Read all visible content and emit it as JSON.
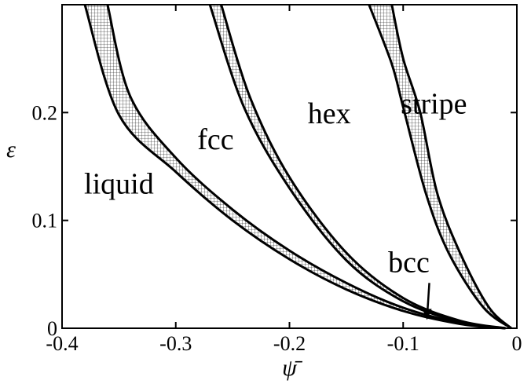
{
  "chart_data": {
    "type": "line",
    "title": "",
    "xlabel": "ψ̄",
    "ylabel": "ε",
    "xlim": [
      -0.4,
      0.0
    ],
    "ylim": [
      0.0,
      0.3
    ],
    "grid": false,
    "x_ticks": [
      {
        "value": -0.4,
        "label": "-0.4"
      },
      {
        "value": -0.3,
        "label": "-0.3"
      },
      {
        "value": -0.2,
        "label": "-0.2"
      },
      {
        "value": -0.1,
        "label": "-0.1"
      },
      {
        "value": 0.0,
        "label": "0"
      }
    ],
    "y_ticks": [
      {
        "value": 0.0,
        "label": "0"
      },
      {
        "value": 0.1,
        "label": "0.1"
      },
      {
        "value": 0.2,
        "label": "0.2"
      }
    ],
    "regions": [
      {
        "label": "liquid",
        "x": -0.35,
        "y": 0.125
      },
      {
        "label": "fcc",
        "x": -0.265,
        "y": 0.166
      },
      {
        "label": "hex",
        "x": -0.165,
        "y": 0.19
      },
      {
        "label": "stripe",
        "x": -0.073,
        "y": 0.199
      },
      {
        "label": "bcc",
        "x": -0.095,
        "y": 0.052
      }
    ],
    "arrow": {
      "from": [
        -0.077,
        0.042
      ],
      "to": [
        -0.079,
        0.015
      ]
    },
    "series": [
      {
        "band": "liquid-fcc coexistence",
        "left": {
          "x": [
            -0.01,
            -0.05,
            -0.1,
            -0.15,
            -0.2,
            -0.25,
            -0.3,
            -0.35,
            -0.38
          ],
          "y": [
            0.0,
            0.004,
            0.016,
            0.036,
            0.064,
            0.1,
            0.145,
            0.198,
            0.3
          ]
        },
        "right": {
          "x": [
            -0.01,
            -0.05,
            -0.1,
            -0.15,
            -0.2,
            -0.25,
            -0.3,
            -0.34,
            -0.36
          ],
          "y": [
            0.0,
            0.005,
            0.019,
            0.042,
            0.072,
            0.11,
            0.158,
            0.215,
            0.3
          ]
        }
      },
      {
        "band": "fcc-hex coexistence",
        "left": {
          "x": [
            -0.01,
            -0.05,
            -0.1,
            -0.15,
            -0.2,
            -0.24,
            -0.27
          ],
          "y": [
            0.0,
            0.006,
            0.025,
            0.063,
            0.13,
            0.205,
            0.3
          ]
        },
        "right": {
          "x": [
            -0.01,
            -0.05,
            -0.1,
            -0.15,
            -0.2,
            -0.235,
            -0.26
          ],
          "y": [
            0.0,
            0.007,
            0.028,
            0.07,
            0.14,
            0.215,
            0.3
          ]
        }
      },
      {
        "band": "hex-stripe coexistence",
        "left": {
          "x": [
            -0.005,
            -0.03,
            -0.06,
            -0.08,
            -0.1,
            -0.11,
            -0.13
          ],
          "y": [
            0.0,
            0.02,
            0.07,
            0.125,
            0.205,
            0.245,
            0.3
          ]
        },
        "right": {
          "x": [
            -0.005,
            -0.025,
            -0.05,
            -0.07,
            -0.085,
            -0.1,
            -0.11
          ],
          "y": [
            0.0,
            0.02,
            0.07,
            0.125,
            0.2,
            0.25,
            0.3
          ]
        }
      }
    ]
  }
}
